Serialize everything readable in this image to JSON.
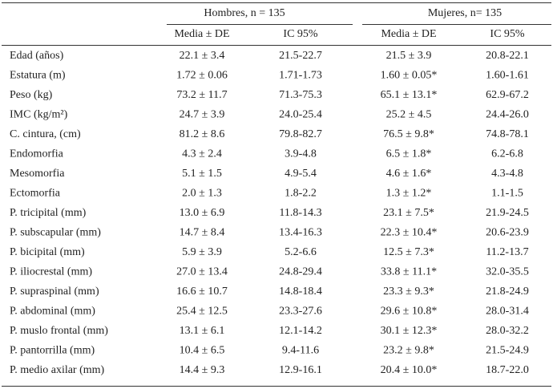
{
  "table": {
    "group_headers": [
      "Hombres, n = 135",
      "Mujeres, n= 135"
    ],
    "column_headers": [
      "Media ± DE",
      "IC 95%",
      "Media ± DE",
      "IC 95%"
    ],
    "rows": [
      [
        "Edad (años)",
        "22.1 ± 3.4",
        "21.5-22.7",
        "21.5 ± 3.9",
        "20.8-22.1"
      ],
      [
        "Estatura (m)",
        "1.72 ± 0.06",
        "1.71-1.73",
        "1.60 ± 0.05*",
        "1.60-1.61"
      ],
      [
        "Peso (kg)",
        "73.2 ± 11.7",
        "71.3-75.3",
        "65.1 ± 13.1*",
        "62.9-67.2"
      ],
      [
        "IMC (kg/m²)",
        "24.7 ± 3.9",
        "24.0-25.4",
        "25.2 ± 4.5",
        "24.4-26.0"
      ],
      [
        "C. cintura, (cm)",
        "81.2 ± 8.6",
        "79.8-82.7",
        "76.5 ± 9.8*",
        "74.8-78.1"
      ],
      [
        "Endomorfia",
        "4.3 ± 2.4",
        "3.9-4.8",
        "6.5 ± 1.8*",
        "6.2-6.8"
      ],
      [
        "Mesomorfia",
        "5.1 ± 1.5",
        "4.9-5.4",
        "4.6 ± 1.6*",
        "4.3-4.8"
      ],
      [
        "Ectomorfia",
        "2.0 ± 1.3",
        "1.8-2.2",
        "1.3 ± 1.2*",
        "1.1-1.5"
      ],
      [
        "P. tricipital (mm)",
        "13.0 ± 6.9",
        "11.8-14.3",
        "23.1 ± 7.5*",
        "21.9-24.5"
      ],
      [
        "P. subscapular (mm)",
        "14.7 ± 8.4",
        "13.4-16.3",
        "22.3 ± 10.4*",
        "20.6-23.9"
      ],
      [
        "P. bicipital (mm)",
        "5.9 ± 3.9",
        "5.2-6.6",
        "12.5 ± 7.3*",
        "11.2-13.7"
      ],
      [
        "P. iliocrestal (mm)",
        "27.0 ± 13.4",
        "24.8-29.4",
        "33.8 ± 11.1*",
        "32.0-35.5"
      ],
      [
        "P. supraspinal (mm)",
        "16.6 ± 10.7",
        "14.8-18.4",
        "23.3 ± 9.3*",
        "21.8-24.9"
      ],
      [
        "P. abdominal (mm)",
        "25.4 ± 12.5",
        "23.3-27.6",
        "29.6 ± 10.8*",
        "28.0-31.4"
      ],
      [
        "P. muslo frontal (mm)",
        "13.1 ± 6.1",
        "12.1-14.2",
        "30.1 ± 12.3*",
        "28.0-32.2"
      ],
      [
        "P. pantorrilla (mm)",
        "10.4 ± 6.5",
        "9.4-11.6",
        "23.2 ± 9.8*",
        "21.5-24.9"
      ],
      [
        "P. medio axilar (mm)",
        "14.4 ± 9.3",
        "12.9-16.1",
        "20.4 ± 10.0*",
        "18.7-22.0"
      ]
    ]
  }
}
